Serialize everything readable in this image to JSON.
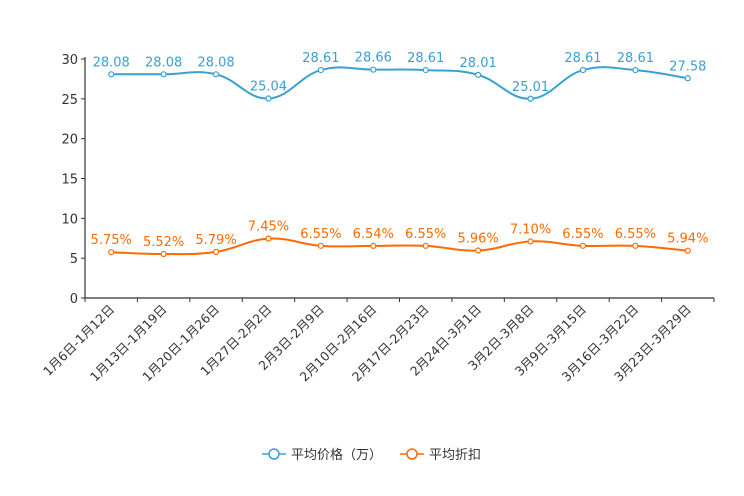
{
  "chart_data": {
    "type": "line",
    "categories": [
      "1月6日-1月12日",
      "1月13日-1月19日",
      "1月20日-1月26日",
      "1月27日-2月2日",
      "2月3日-2月9日",
      "2月10日-2月16日",
      "2月17日-2月23日",
      "2月24日-3月1日",
      "3月2日-3月8日",
      "3月9日-3月15日",
      "3月16日-3月22日",
      "3月23日-3月29日"
    ],
    "ylim": [
      0,
      30
    ],
    "yticks": [
      0,
      5,
      10,
      15,
      20,
      25,
      30
    ],
    "series": [
      {
        "name": "平均价格（万）",
        "color": "#3a9fd3",
        "values": [
          28.08,
          28.08,
          28.08,
          25.04,
          28.61,
          28.66,
          28.61,
          28.01,
          25.01,
          28.61,
          28.61,
          27.58
        ],
        "labels": [
          "28.08",
          "28.08",
          "28.08",
          "25.04",
          "28.61",
          "28.66",
          "28.61",
          "28.01",
          "25.01",
          "28.61",
          "28.61",
          "27.58"
        ]
      },
      {
        "name": "平均折扣",
        "color": "#ff6a00",
        "values": [
          5.75,
          5.52,
          5.79,
          7.45,
          6.55,
          6.54,
          6.55,
          5.96,
          7.1,
          6.55,
          6.55,
          5.94
        ],
        "labels": [
          "5.75%",
          "5.52%",
          "5.79%",
          "7.45%",
          "6.55%",
          "6.54%",
          "6.55%",
          "5.96%",
          "7.10%",
          "6.55%",
          "6.55%",
          "5.94%"
        ]
      }
    ],
    "legend_position": "bottom",
    "grid": false
  }
}
